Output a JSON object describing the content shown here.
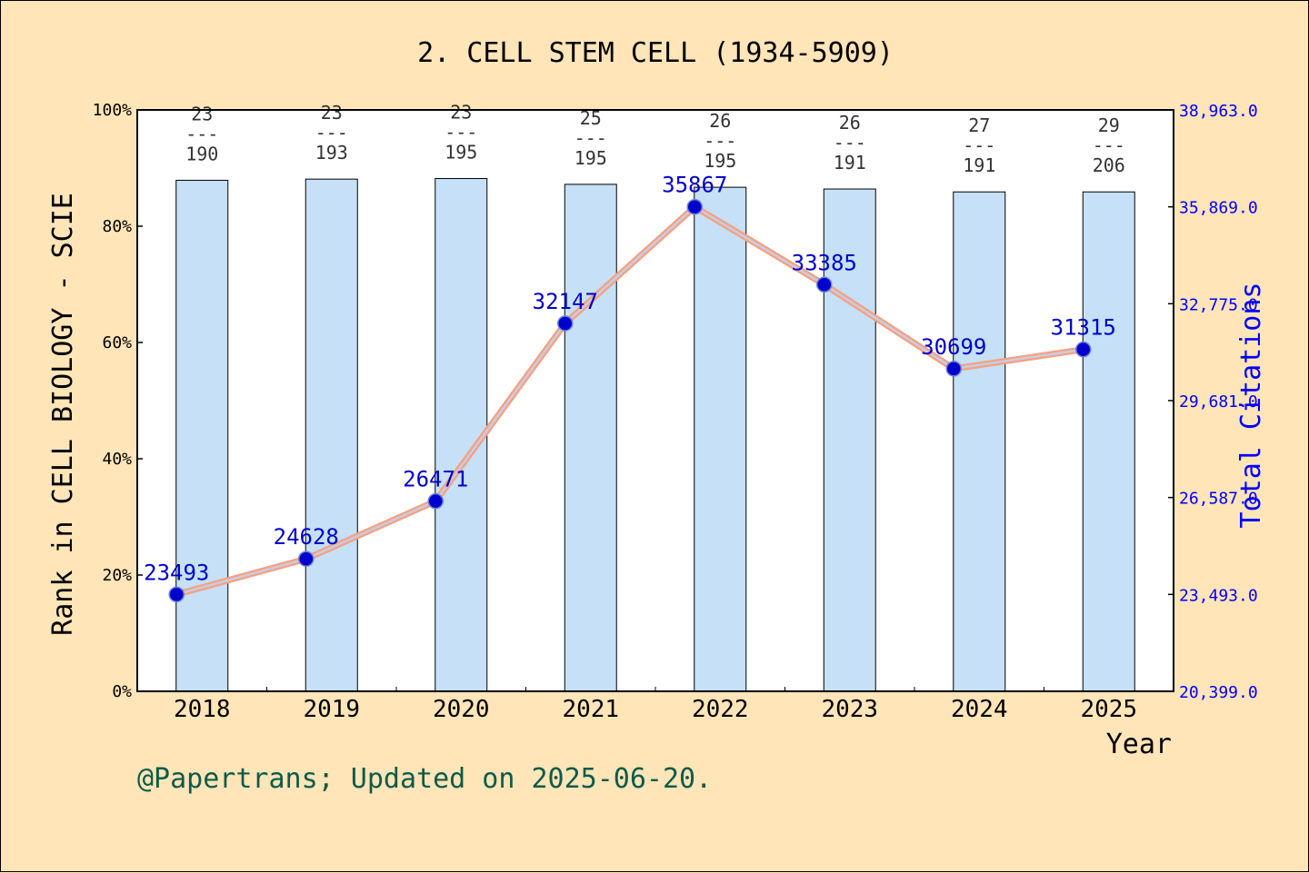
{
  "chart_data": {
    "type": "bar",
    "title": "2. CELL STEM CELL (1934-5909)",
    "xlabel": "Year",
    "ylabel": "Rank in CELL BIOLOGY - SCIE",
    "y2label": "Total Citations",
    "categories": [
      "2018",
      "2019",
      "2020",
      "2021",
      "2022",
      "2023",
      "2024",
      "2025"
    ],
    "ylim": [
      0,
      100
    ],
    "y_ticks": [
      "0%",
      "20%",
      "40%",
      "60%",
      "80%",
      "100%"
    ],
    "y2lim": [
      20399,
      38963
    ],
    "y2_ticks": [
      "20,399.0",
      "23,493.0",
      "26,587.0",
      "29,681.0",
      "32,775.0",
      "35,869.0",
      "38,963.0"
    ],
    "grid": false,
    "series": [
      {
        "kind": "bar",
        "axis": "left",
        "values": [
          87.9,
          88.1,
          88.2,
          87.2,
          86.7,
          86.4,
          85.9,
          85.9
        ],
        "rank_labels": [
          {
            "rank": "23",
            "total": "190"
          },
          {
            "rank": "23",
            "total": "193"
          },
          {
            "rank": "23",
            "total": "195"
          },
          {
            "rank": "25",
            "total": "195"
          },
          {
            "rank": "26",
            "total": "195"
          },
          {
            "rank": "26",
            "total": "191"
          },
          {
            "rank": "27",
            "total": "191"
          },
          {
            "rank": "29",
            "total": "206"
          }
        ],
        "fraction_bar": "---"
      },
      {
        "kind": "line",
        "axis": "right",
        "values": [
          23493,
          24628,
          26471,
          32147,
          35867,
          33385,
          30699,
          31315
        ],
        "data_labels": [
          "23493",
          "24628",
          "26471",
          "32147",
          "35867",
          "33385",
          "30699",
          "31315"
        ]
      }
    ],
    "colors": {
      "background": "#FFE5B8",
      "plot_background": "#FFFFFF",
      "bar_fill": "#C5E0F7",
      "line": "#F7A07E",
      "marker": "#0000CC",
      "right_axis": "#0000FF",
      "footer": "#0E5A4A"
    }
  },
  "footer": {
    "text": "@Papertrans; Updated on 2025-06-20."
  }
}
